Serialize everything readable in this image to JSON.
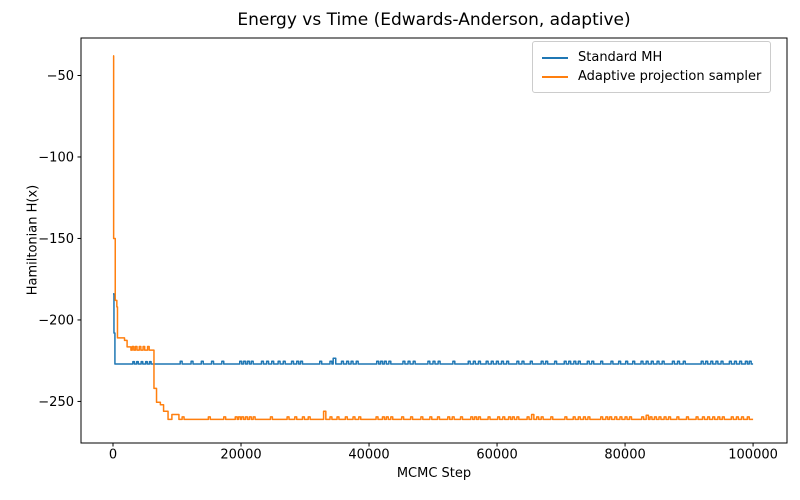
{
  "chart_data": {
    "type": "line",
    "title": "Energy vs Time (Edwards-Anderson, adaptive)",
    "xlabel": "MCMC Step",
    "ylabel": "Hamiltonian H(x)",
    "xlim": [
      -5000,
      105300
    ],
    "ylim": [
      -275.5,
      -27
    ],
    "x_data_max": 100000,
    "grid": false,
    "legend_position": "upper right",
    "background_color": "#ffffff",
    "axis_color": "#000000",
    "legend_border_color": "#cccccc",
    "xticks": {
      "values": [
        0,
        20000,
        40000,
        60000,
        80000,
        100000
      ],
      "labels": [
        "0",
        "20000",
        "40000",
        "60000",
        "80000",
        "100000"
      ]
    },
    "yticks": {
      "values": [
        -50,
        -100,
        -150,
        -200,
        -250
      ],
      "labels": [
        "−50",
        "−100",
        "−150",
        "−200",
        "−250"
      ]
    },
    "series": [
      {
        "name": "Standard MH",
        "color": "#1f77b4",
        "linewidth": 1.5,
        "segments": [
          [
            0,
            -184
          ],
          [
            150,
            -208
          ],
          [
            300,
            -227
          ]
        ],
        "blip_peak": -225.3,
        "blip_width": 300,
        "blips": [
          [
            3100,
            -225.6,
            250
          ],
          [
            3700,
            -225.6,
            250
          ],
          [
            4400,
            -225.6,
            250
          ],
          [
            5100,
            -225.6,
            250
          ],
          [
            5700,
            -225.6,
            250
          ],
          10500,
          12200,
          13800,
          15400,
          17000,
          19800,
          20400,
          21000,
          21600,
          23200,
          24000,
          24800,
          25800,
          26600,
          27900,
          28700,
          29300,
          32300,
          33900,
          [
            34400,
            -223.5,
            400
          ],
          35700,
          36500,
          37200,
          38000,
          41200,
          41800,
          42400,
          43100,
          45300,
          46100,
          46900,
          49200,
          50000,
          50800,
          53100,
          55500,
          56300,
          57100,
          58300,
          59100,
          59900,
          60700,
          61500,
          63100,
          63900,
          65200,
          66900,
          67600,
          69000,
          70500,
          71200,
          72000,
          72700,
          74100,
          74800,
          76200,
          77800,
          79000,
          80100,
          81200,
          82500,
          83300,
          84100,
          85000,
          85800,
          87400,
          88200,
          89100,
          91900,
          92600,
          93400,
          94200,
          95000,
          96300,
          97100,
          97900,
          98800,
          99400
        ]
      },
      {
        "name": "Adaptive projection sampler",
        "color": "#ff7f0e",
        "linewidth": 1.5,
        "segments": [
          [
            0,
            -38
          ],
          [
            100,
            -150
          ],
          [
            350,
            -188
          ],
          [
            600,
            -192
          ],
          [
            700,
            -211
          ],
          [
            1800,
            -212.5
          ],
          [
            2200,
            -216.5
          ],
          [
            2800,
            -218.5
          ],
          [
            6400,
            -242
          ],
          [
            6800,
            -250.5
          ],
          [
            7400,
            -252
          ],
          [
            7900,
            -256
          ],
          [
            8600,
            -261
          ]
        ],
        "blip_peak": -259.5,
        "blip_width": 300,
        "blips": [
          [
            3000,
            -216.3,
            250
          ],
          [
            3500,
            -216.3,
            250
          ],
          [
            4100,
            -216.3,
            250
          ],
          [
            4700,
            -216.3,
            250
          ],
          [
            5400,
            -216.3,
            250
          ],
          [
            9200,
            -258,
            1100
          ],
          10800,
          14900,
          17300,
          19100,
          19600,
          20100,
          20700,
          21300,
          21900,
          24600,
          27200,
          28400,
          29600,
          30500,
          [
            32900,
            -256,
            350
          ],
          33900,
          35000,
          36300,
          37500,
          38400,
          41100,
          42100,
          42700,
          43400,
          45100,
          46500,
          48100,
          49500,
          50700,
          52300,
          53000,
          54300,
          55900,
          56500,
          57100,
          58600,
          60100,
          60900,
          61800,
          62400,
          63100,
          64700,
          [
            65400,
            -258,
            350
          ],
          66200,
          66900,
          68400,
          70600,
          71900,
          72700,
          73500,
          74200,
          76200,
          77000,
          77600,
          78400,
          79200,
          80000,
          80700,
          82600,
          [
            83300,
            -258.5,
            350
          ],
          83900,
          84600,
          85300,
          86100,
          86800,
          88100,
          89600,
          91100,
          92100,
          92900,
          93700,
          94500,
          95200,
          96600,
          97400,
          98200,
          99100
        ]
      }
    ]
  }
}
